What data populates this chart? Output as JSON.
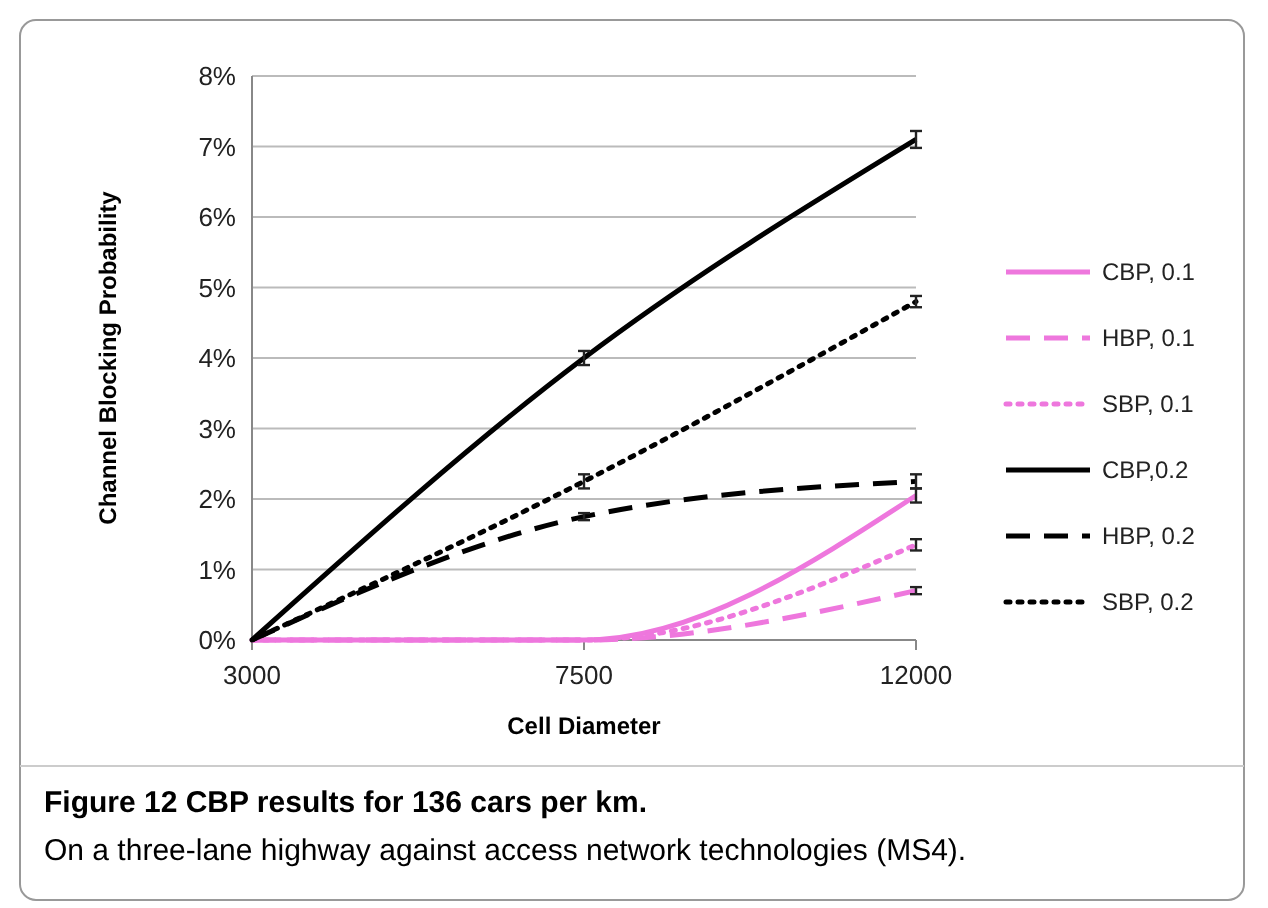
{
  "chart_data": {
    "type": "line",
    "title": "Figure 12 CBP results for 136 cars per km.",
    "subtitle": "On a three-lane highway against access network technologies (MS4).",
    "xlabel": "Cell Diameter",
    "ylabel": "Channel Blocking Probability",
    "x": [
      3000,
      7500,
      12000
    ],
    "xlim": [
      3000,
      12000
    ],
    "xticks": [
      3000,
      7500,
      12000
    ],
    "ylim": [
      0,
      8
    ],
    "yticks": [
      {
        "value": 0,
        "label": "0%"
      },
      {
        "value": 1,
        "label": "1%"
      },
      {
        "value": 2,
        "label": "2%"
      },
      {
        "value": 3,
        "label": "3%"
      },
      {
        "value": 4,
        "label": "4%"
      },
      {
        "value": 5,
        "label": "5%"
      },
      {
        "value": 6,
        "label": "6%"
      },
      {
        "value": 7,
        "label": "7%"
      },
      {
        "value": 8,
        "label": "8%"
      }
    ],
    "grid": "y",
    "legend": "right",
    "marker": "none",
    "series": [
      {
        "name": "CBP, 0.1",
        "color": "#ee77dd",
        "line_style": "solid",
        "values": [
          0,
          0,
          2.05
        ],
        "errors": [
          null,
          null,
          0.1
        ]
      },
      {
        "name": "HBP, 0.1",
        "color": "#ee77dd",
        "line_style": "dashed",
        "values": [
          0,
          0,
          0.7
        ],
        "errors": [
          null,
          null,
          0.05
        ]
      },
      {
        "name": "SBP, 0.1",
        "color": "#ee77dd",
        "line_style": "dotted",
        "values": [
          0,
          0,
          1.35
        ],
        "errors": [
          null,
          null,
          0.08
        ]
      },
      {
        "name": "CBP,0.2",
        "color": "#000000",
        "line_style": "solid",
        "values": [
          0,
          4.0,
          7.1
        ],
        "errors": [
          null,
          0.1,
          0.12
        ]
      },
      {
        "name": "HBP, 0.2",
        "color": "#000000",
        "line_style": "dashed",
        "values": [
          0,
          1.75,
          2.25
        ],
        "errors": [
          null,
          0.05,
          0.1
        ]
      },
      {
        "name": "SBP, 0.2",
        "color": "#000000",
        "line_style": "dotted",
        "values": [
          0,
          2.25,
          4.8
        ],
        "errors": [
          null,
          0.1,
          0.08
        ]
      }
    ]
  }
}
